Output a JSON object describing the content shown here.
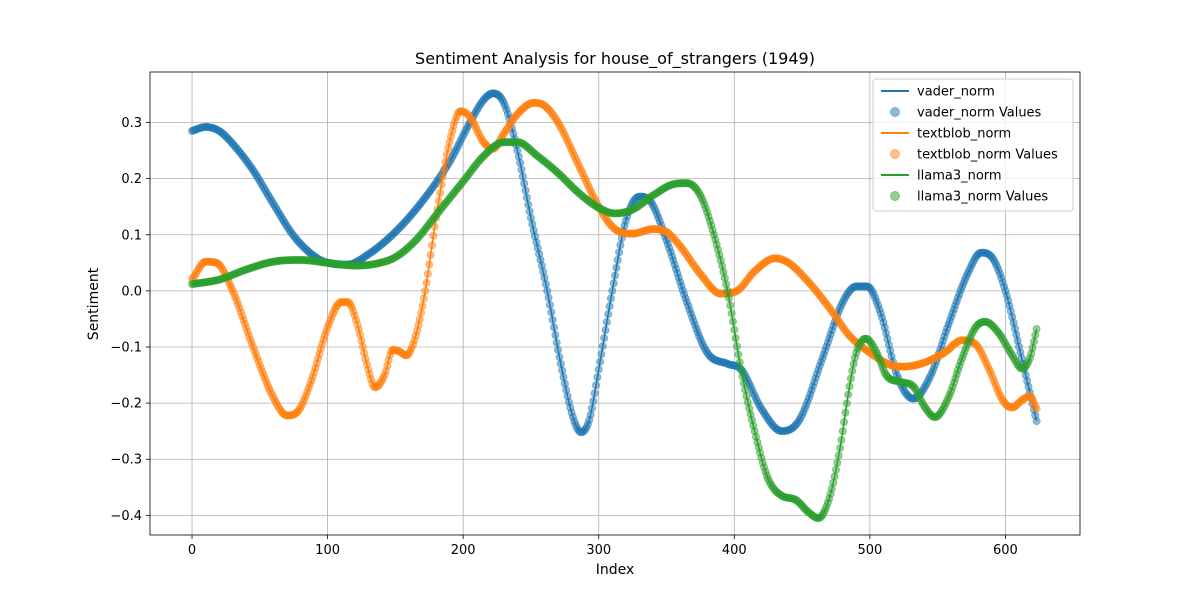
{
  "chart_data": {
    "type": "line",
    "title": "Sentiment Analysis for house_of_strangers (1949)",
    "xlabel": "Index",
    "ylabel": "Sentiment",
    "xlim": [
      -31,
      655
    ],
    "ylim": [
      -0.435,
      0.39
    ],
    "x_ticks": [
      0,
      100,
      200,
      300,
      400,
      500,
      600
    ],
    "y_ticks": [
      -0.4,
      -0.3,
      -0.2,
      -0.1,
      0.0,
      0.1,
      0.2,
      0.3
    ],
    "x_tick_labels": [
      "0",
      "100",
      "200",
      "300",
      "400",
      "500",
      "600"
    ],
    "y_tick_labels": [
      "−0.4",
      "−0.3",
      "−0.2",
      "−0.1",
      "0.0",
      "0.1",
      "0.2",
      "0.3"
    ],
    "grid": true,
    "legend_position": "top-right",
    "x_max": 623,
    "series": [
      {
        "name": "vader_norm",
        "scatter_name": "vader_norm Values",
        "color": "#1f77b4",
        "anchors": [
          [
            0,
            0.285
          ],
          [
            10,
            0.292
          ],
          [
            20,
            0.285
          ],
          [
            30,
            0.262
          ],
          [
            45,
            0.215
          ],
          [
            60,
            0.155
          ],
          [
            75,
            0.098
          ],
          [
            90,
            0.062
          ],
          [
            100,
            0.05
          ],
          [
            115,
            0.047
          ],
          [
            130,
            0.065
          ],
          [
            150,
            0.105
          ],
          [
            170,
            0.16
          ],
          [
            190,
            0.23
          ],
          [
            205,
            0.3
          ],
          [
            215,
            0.34
          ],
          [
            222,
            0.352
          ],
          [
            230,
            0.335
          ],
          [
            240,
            0.25
          ],
          [
            250,
            0.13
          ],
          [
            262,
            0.0
          ],
          [
            272,
            -0.13
          ],
          [
            281,
            -0.225
          ],
          [
            287,
            -0.252
          ],
          [
            293,
            -0.23
          ],
          [
            300,
            -0.14
          ],
          [
            310,
            0.0
          ],
          [
            320,
            0.125
          ],
          [
            330,
            0.168
          ],
          [
            338,
            0.16
          ],
          [
            350,
            0.09
          ],
          [
            365,
            -0.02
          ],
          [
            380,
            -0.11
          ],
          [
            395,
            -0.13
          ],
          [
            405,
            -0.14
          ],
          [
            420,
            -0.21
          ],
          [
            435,
            -0.25
          ],
          [
            448,
            -0.23
          ],
          [
            465,
            -0.12
          ],
          [
            480,
            -0.02
          ],
          [
            490,
            0.008
          ],
          [
            498,
            0.008
          ],
          [
            508,
            -0.04
          ],
          [
            520,
            -0.15
          ],
          [
            532,
            -0.192
          ],
          [
            545,
            -0.15
          ],
          [
            558,
            -0.06
          ],
          [
            572,
            0.03
          ],
          [
            582,
            0.068
          ],
          [
            590,
            0.06
          ],
          [
            600,
            0.0
          ],
          [
            612,
            -0.12
          ],
          [
            623,
            -0.232
          ]
        ]
      },
      {
        "name": "textblob_norm",
        "scatter_name": "textblob_norm Values",
        "color": "#ff7f0e",
        "anchors": [
          [
            0,
            0.02
          ],
          [
            10,
            0.052
          ],
          [
            18,
            0.05
          ],
          [
            30,
            0.0
          ],
          [
            45,
            -0.1
          ],
          [
            60,
            -0.19
          ],
          [
            70,
            -0.222
          ],
          [
            78,
            -0.215
          ],
          [
            88,
            -0.16
          ],
          [
            100,
            -0.065
          ],
          [
            110,
            -0.02
          ],
          [
            115,
            -0.02
          ],
          [
            122,
            -0.06
          ],
          [
            130,
            -0.14
          ],
          [
            135,
            -0.172
          ],
          [
            142,
            -0.15
          ],
          [
            148,
            -0.105
          ],
          [
            153,
            -0.108
          ],
          [
            158,
            -0.115
          ],
          [
            165,
            -0.08
          ],
          [
            172,
            0.0
          ],
          [
            180,
            0.13
          ],
          [
            190,
            0.265
          ],
          [
            198,
            0.32
          ],
          [
            205,
            0.31
          ],
          [
            215,
            0.265
          ],
          [
            222,
            0.253
          ],
          [
            230,
            0.28
          ],
          [
            240,
            0.315
          ],
          [
            252,
            0.335
          ],
          [
            260,
            0.33
          ],
          [
            270,
            0.3
          ],
          [
            285,
            0.225
          ],
          [
            300,
            0.15
          ],
          [
            312,
            0.11
          ],
          [
            325,
            0.102
          ],
          [
            340,
            0.11
          ],
          [
            350,
            0.105
          ],
          [
            360,
            0.08
          ],
          [
            375,
            0.03
          ],
          [
            390,
            -0.005
          ],
          [
            402,
            0.0
          ],
          [
            415,
            0.035
          ],
          [
            430,
            0.058
          ],
          [
            440,
            0.05
          ],
          [
            455,
            0.015
          ],
          [
            470,
            -0.03
          ],
          [
            485,
            -0.08
          ],
          [
            500,
            -0.11
          ],
          [
            515,
            -0.132
          ],
          [
            525,
            -0.135
          ],
          [
            540,
            -0.128
          ],
          [
            555,
            -0.11
          ],
          [
            568,
            -0.088
          ],
          [
            578,
            -0.095
          ],
          [
            588,
            -0.14
          ],
          [
            598,
            -0.195
          ],
          [
            605,
            -0.208
          ],
          [
            612,
            -0.195
          ],
          [
            618,
            -0.188
          ],
          [
            623,
            -0.21
          ]
        ]
      },
      {
        "name": "llama3_norm",
        "scatter_name": "llama3_norm Values",
        "color": "#2ca02c",
        "anchors": [
          [
            0,
            0.012
          ],
          [
            20,
            0.02
          ],
          [
            40,
            0.038
          ],
          [
            60,
            0.052
          ],
          [
            80,
            0.055
          ],
          [
            100,
            0.05
          ],
          [
            120,
            0.045
          ],
          [
            135,
            0.048
          ],
          [
            150,
            0.06
          ],
          [
            165,
            0.09
          ],
          [
            180,
            0.135
          ],
          [
            200,
            0.195
          ],
          [
            215,
            0.24
          ],
          [
            230,
            0.265
          ],
          [
            240,
            0.265
          ],
          [
            255,
            0.24
          ],
          [
            270,
            0.21
          ],
          [
            285,
            0.175
          ],
          [
            300,
            0.148
          ],
          [
            312,
            0.138
          ],
          [
            325,
            0.145
          ],
          [
            340,
            0.17
          ],
          [
            355,
            0.19
          ],
          [
            365,
            0.192
          ],
          [
            375,
            0.17
          ],
          [
            385,
            0.1
          ],
          [
            395,
            0.0
          ],
          [
            405,
            -0.14
          ],
          [
            415,
            -0.25
          ],
          [
            425,
            -0.335
          ],
          [
            435,
            -0.365
          ],
          [
            445,
            -0.372
          ],
          [
            455,
            -0.395
          ],
          [
            462,
            -0.405
          ],
          [
            470,
            -0.37
          ],
          [
            478,
            -0.28
          ],
          [
            485,
            -0.17
          ],
          [
            490,
            -0.11
          ],
          [
            497,
            -0.085
          ],
          [
            505,
            -0.11
          ],
          [
            512,
            -0.15
          ],
          [
            522,
            -0.162
          ],
          [
            532,
            -0.17
          ],
          [
            540,
            -0.205
          ],
          [
            548,
            -0.225
          ],
          [
            558,
            -0.19
          ],
          [
            568,
            -0.12
          ],
          [
            578,
            -0.065
          ],
          [
            585,
            -0.055
          ],
          [
            595,
            -0.075
          ],
          [
            605,
            -0.115
          ],
          [
            612,
            -0.138
          ],
          [
            618,
            -0.12
          ],
          [
            623,
            -0.068
          ]
        ]
      }
    ]
  }
}
